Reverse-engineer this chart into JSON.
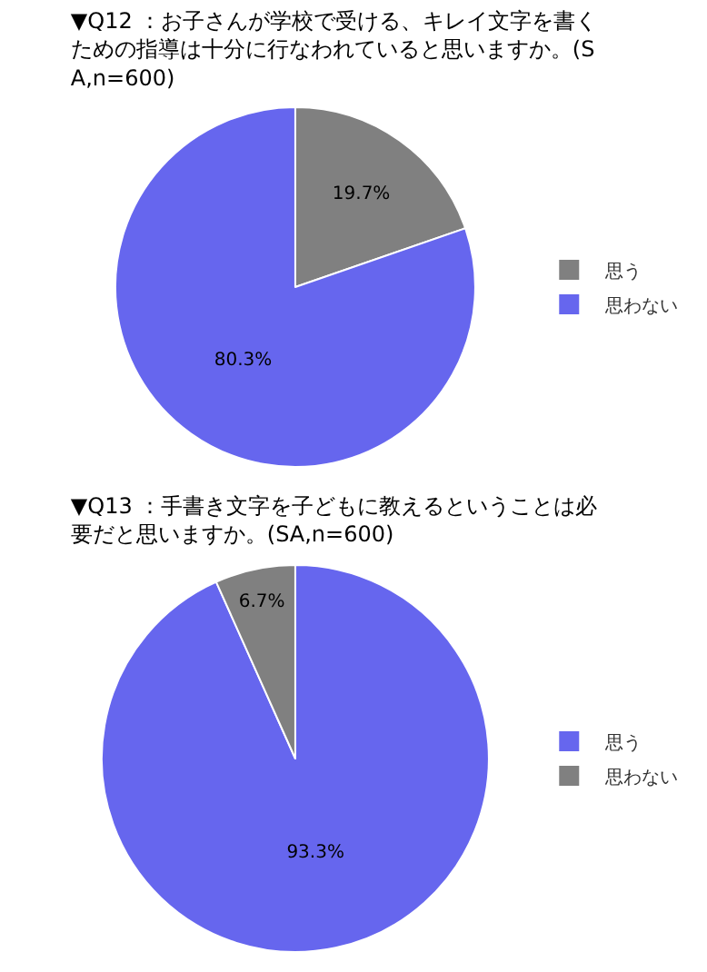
{
  "chart_data": [
    {
      "type": "pie",
      "title": "▼Q12 ：お子さんが学校で受ける、キレイ文字を書くための指導は十分に行なわれていると思いますか。(SA,n=600)",
      "categories": [
        "思う",
        "思わない"
      ],
      "values": [
        19.7,
        80.3
      ],
      "value_labels": [
        "19.7%",
        "80.3%"
      ],
      "colors": [
        "#808080",
        "#6666ee"
      ],
      "legend": "right"
    },
    {
      "type": "pie",
      "title": "▼Q13 ：手書き文字を子どもに教えるということは必要だと思いますか。(SA,n=600)",
      "categories": [
        "思う",
        "思わない"
      ],
      "values": [
        93.3,
        6.7
      ],
      "value_labels": [
        "93.3%",
        "6.7%"
      ],
      "colors": [
        "#6666ee",
        "#808080"
      ],
      "legend": "right"
    }
  ]
}
